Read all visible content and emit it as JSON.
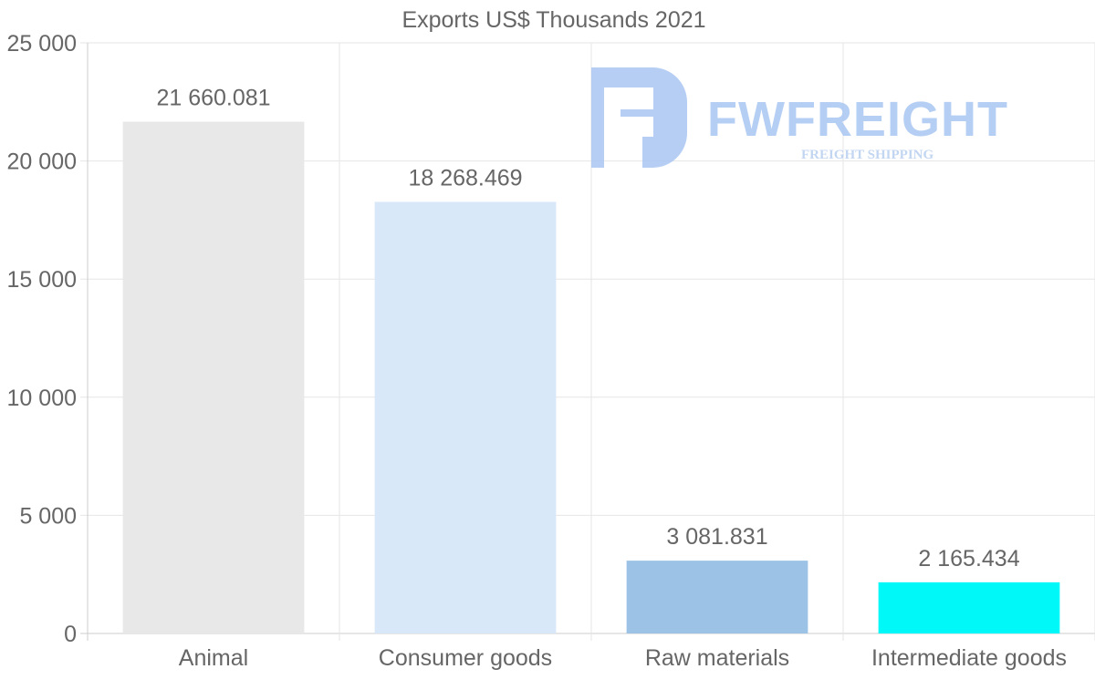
{
  "chart_data": {
    "type": "bar",
    "title": "Exports US$ Thousands 2021",
    "xlabel": "",
    "ylabel": "",
    "ylim": [
      0,
      25000
    ],
    "yticks": [
      0,
      5000,
      10000,
      15000,
      20000,
      25000
    ],
    "ytick_labels": [
      "0",
      "5 000",
      "10 000",
      "15 000",
      "20 000",
      "25 000"
    ],
    "categories": [
      "Animal",
      "Consumer goods",
      "Raw materials",
      "Intermediate goods"
    ],
    "values": [
      21660.081,
      18268.469,
      3081.831,
      2165.434
    ],
    "value_labels": [
      "21 660.081",
      "18 268.469",
      "3 081.831",
      "2 165.434"
    ],
    "colors": [
      "#e8e8e8",
      "#d8e8f8",
      "#9cc3e6",
      "#00f8f8"
    ],
    "grid": true,
    "legend": "none"
  },
  "watermark": {
    "brand": "FWFREIGHT",
    "tagline": "FREIGHT SHIPPING",
    "color": "#a9c6f2"
  }
}
